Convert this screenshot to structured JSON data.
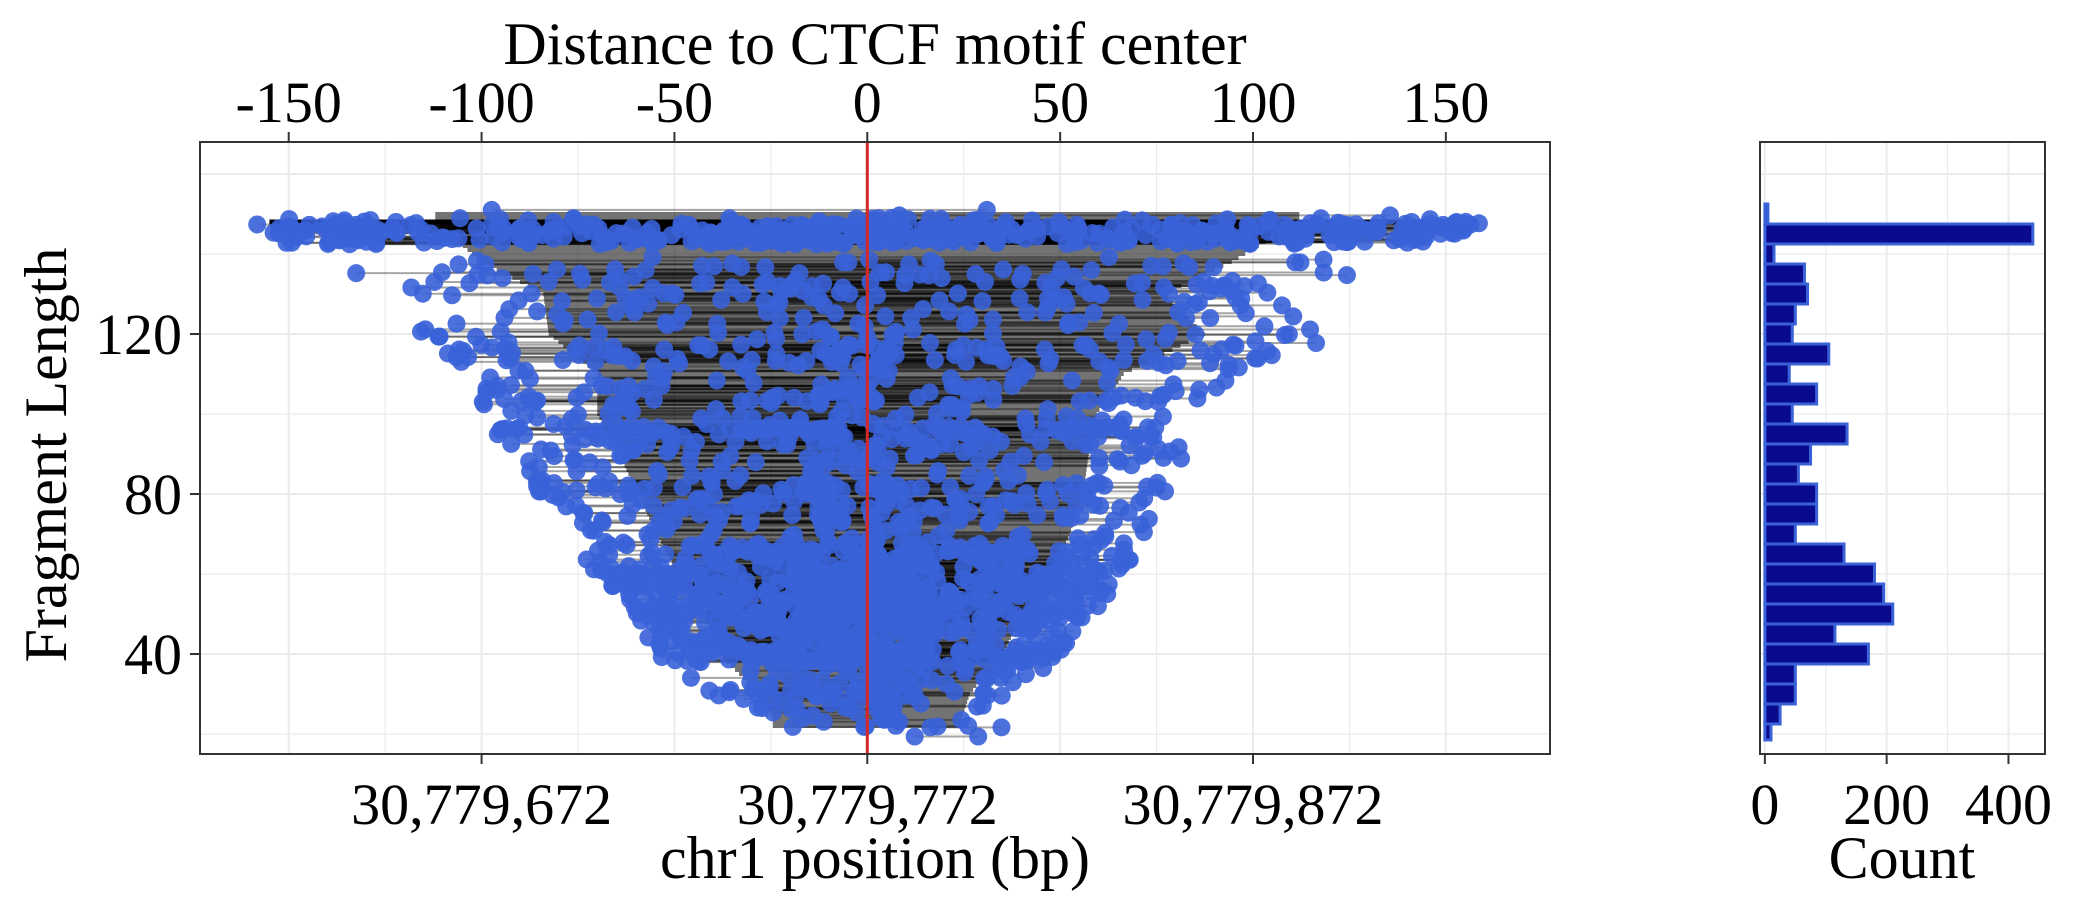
{
  "chart_data": [
    {
      "type": "scatter",
      "description_note": "",
      "top_axis": {
        "title": "Distance to CTCF motif center",
        "ticks": [
          -150,
          -100,
          -50,
          0,
          50,
          100,
          150
        ],
        "tick_labels": [
          "-150",
          "-100",
          "-50",
          "0",
          "50",
          "100",
          "150"
        ]
      },
      "x_axis": {
        "title": "chr1 position (bp)",
        "ticks": [
          30779672,
          30779772,
          30779872
        ],
        "tick_labels": [
          "30,779,672",
          "30,779,772",
          "30,779,872"
        ],
        "lim": [
          30779599,
          30779949
        ]
      },
      "y_axis": {
        "title": "Fragment Length",
        "ticks": [
          40,
          80,
          120
        ],
        "tick_labels": [
          "40",
          "80",
          "120"
        ],
        "lim": [
          15,
          168
        ]
      },
      "motif_center": 30779772,
      "grid": true,
      "colors": {
        "point": "#3a62d8",
        "segment": "#000000",
        "center_line": "#d62728"
      },
      "fragment_envelope": [
        {
          "length": 24,
          "min_dist": -35,
          "max_dist": 35
        },
        {
          "length": 30,
          "min_dist": -40,
          "max_dist": 38
        },
        {
          "length": 40,
          "min_dist": -55,
          "max_dist": 50
        },
        {
          "length": 50,
          "min_dist": -60,
          "max_dist": 58
        },
        {
          "length": 60,
          "min_dist": -70,
          "max_dist": 68
        },
        {
          "length": 70,
          "min_dist": -78,
          "max_dist": 75
        },
        {
          "length": 80,
          "min_dist": -85,
          "max_dist": 80
        },
        {
          "length": 90,
          "min_dist": -92,
          "max_dist": 82
        },
        {
          "length": 100,
          "min_dist": -100,
          "max_dist": 85
        },
        {
          "length": 110,
          "min_dist": -100,
          "max_dist": 95
        },
        {
          "length": 120,
          "min_dist": -118,
          "max_dist": 125
        },
        {
          "length": 130,
          "min_dist": -120,
          "max_dist": 110
        },
        {
          "length": 138,
          "min_dist": -143,
          "max_dist": 135
        },
        {
          "length": 148,
          "min_dist": -160,
          "max_dist": 160
        }
      ]
    },
    {
      "type": "bar",
      "orientation": "horizontal",
      "x_axis": {
        "title": "Count",
        "ticks": [
          0,
          200,
          400
        ],
        "tick_labels": [
          "0",
          "200",
          "400"
        ],
        "lim": [
          -8,
          460
        ]
      },
      "y_axis": {
        "lim": [
          15,
          168
        ]
      },
      "colors": {
        "fill": "#0a0a8c",
        "stroke": "#3a62d8"
      },
      "bins": [
        {
          "y": 21,
          "count": 10
        },
        {
          "y": 25,
          "count": 25
        },
        {
          "y": 30,
          "count": 50
        },
        {
          "y": 35,
          "count": 50
        },
        {
          "y": 40,
          "count": 170
        },
        {
          "y": 45,
          "count": 115
        },
        {
          "y": 50,
          "count": 210
        },
        {
          "y": 55,
          "count": 195
        },
        {
          "y": 60,
          "count": 180
        },
        {
          "y": 65,
          "count": 130
        },
        {
          "y": 70,
          "count": 50
        },
        {
          "y": 75,
          "count": 85
        },
        {
          "y": 80,
          "count": 85
        },
        {
          "y": 85,
          "count": 55
        },
        {
          "y": 90,
          "count": 75
        },
        {
          "y": 95,
          "count": 135
        },
        {
          "y": 100,
          "count": 45
        },
        {
          "y": 105,
          "count": 85
        },
        {
          "y": 110,
          "count": 40
        },
        {
          "y": 115,
          "count": 105
        },
        {
          "y": 120,
          "count": 45
        },
        {
          "y": 125,
          "count": 50
        },
        {
          "y": 130,
          "count": 70
        },
        {
          "y": 135,
          "count": 65
        },
        {
          "y": 140,
          "count": 15
        },
        {
          "y": 145,
          "count": 440
        },
        {
          "y": 150,
          "count": 5
        }
      ]
    }
  ]
}
